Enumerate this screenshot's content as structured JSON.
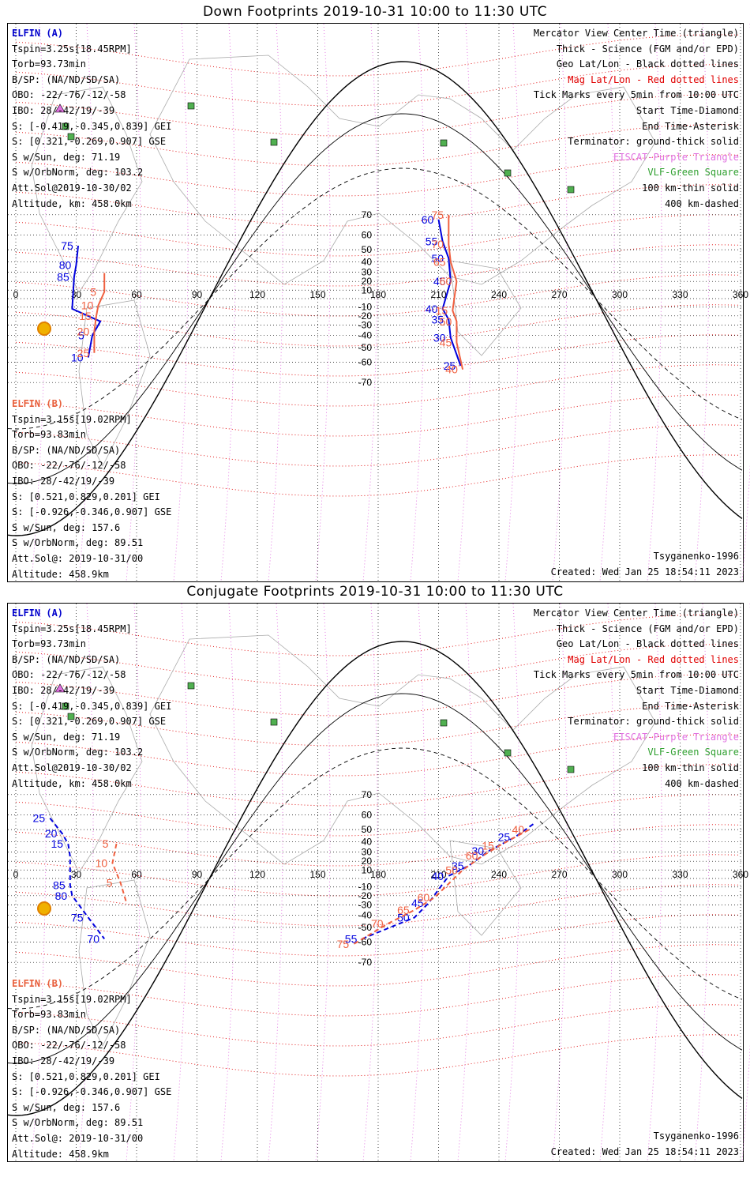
{
  "panels": [
    {
      "title": "Down Footprints 2019-10-31 10:00 to 11:30 UTC",
      "elfin_a": {
        "header": "ELFIN (A)",
        "lines": [
          "Tspin=3.25s[18.45RPM]",
          "Torb=93.73min",
          "B/SP: (NA/ND/SD/SA)",
          "OBO: -22/-76/-12/-58",
          "IBO: 28/-42/19/-39",
          "S: [-0.419,-0.345,0.839] GEI",
          "S: [0.321,-0.269,0.907] GSE",
          "S w/Sun, deg: 71.19",
          "S w/OrbNorm, deg: 103.2",
          "Att.Sol@2019-10-30/02",
          "Altitude, km: 458.0km"
        ]
      },
      "elfin_b": {
        "header": "ELFIN (B)",
        "lines": [
          "Tspin=3.15s[19.02RPM]",
          "Torb=93.83min",
          "B/SP: (NA/ND/SD/SA)",
          "OBO: -22/-76/-12/-58",
          "IBO: 28/-42/19/-39",
          "S: [0.521,0.829,0.201] GEI",
          "S: [-0.926,-0.346,0.907] GSE",
          "S w/Sun, deg: 157.6",
          "S w/OrbNorm, deg: 89.51",
          "Att.Sol@: 2019-10-31/00",
          "Altitude: 458.9km"
        ]
      },
      "legend": [
        "Mercator View Center Time (triangle)",
        "Thick - Science (FGM and/or EPD)",
        "Geo Lat/Lon - Black dotted lines",
        "Mag Lat/Lon - Red dotted lines",
        "Tick Marks every 5min from 10:00 UTC",
        "Start Time-Diamond",
        "End Time-Asterisk",
        "Terminator: ground-thick solid",
        "EISCAT-Purple Triangle",
        "VLF-Green Square",
        "100 km-thin solid",
        "400 km-dashed"
      ],
      "model": "Tsyganenko-1996",
      "created": "Created: Wed Jan 25 18:54:11 2023"
    },
    {
      "title": "Conjugate Footprints 2019-10-31 10:00 to 11:30 UTC",
      "elfin_a": {
        "header": "ELFIN (A)",
        "lines": [
          "Tspin=3.25s[18.45RPM]",
          "Torb=93.73min",
          "B/SP: (NA/ND/SD/SA)",
          "OBO: -22/-76/-12/-58",
          "IBO: 28/-42/19/-39",
          "S: [-0.419,-0.345,0.839] GEI",
          "S: [0.321,-0.269,0.907] GSE",
          "S w/Sun, deg: 71.19",
          "S w/OrbNorm, deg: 103.2",
          "Att.Sol@2019-10-30/02",
          "Altitude, km: 458.0km"
        ]
      },
      "elfin_b": {
        "header": "ELFIN (B)",
        "lines": [
          "Tspin=3.15s[19.02RPM]",
          "Torb=93.83min",
          "B/SP: (NA/ND/SD/SA)",
          "OBO: -22/-76/-12/-58",
          "IBO: 28/-42/19/-39",
          "S: [0.521,0.829,0.201] GEI",
          "S: [-0.926,-0.346,0.907] GSE",
          "S w/Sun, deg: 157.6",
          "S w/OrbNorm, deg: 89.51",
          "Att.Sol@: 2019-10-31/00",
          "Altitude: 458.9km"
        ]
      },
      "legend": [
        "Mercator View Center Time (triangle)",
        "Thick - Science (FGM and/or EPD)",
        "Geo Lat/Lon - Black dotted lines",
        "Mag Lat/Lon - Red dotted lines",
        "Tick Marks every 5min from 10:00 UTC",
        "Start Time-Diamond",
        "End Time-Asterisk",
        "Terminator: ground-thick solid",
        "EISCAT-Purple Triangle",
        "VLF-Green Square",
        "100 km-thin solid",
        "400 km-dashed"
      ],
      "model": "Tsyganenko-1996",
      "created": "Created: Wed Jan 25 18:54:11 2023"
    }
  ],
  "map": {
    "lon_ticks": [
      "0",
      "30",
      "60",
      "90",
      "120",
      "150",
      "180",
      "210",
      "240",
      "270",
      "300",
      "330",
      "360"
    ],
    "lat_ticks": [
      "70",
      "60",
      "50",
      "40",
      "30",
      "20",
      "10",
      "-10",
      "-20",
      "-30",
      "-40",
      "-50",
      "-60",
      "-70"
    ],
    "colors": {
      "elfin_a": "#0000dd",
      "elfin_b": "#f06040",
      "mag_grid": "#e00000",
      "eiscat": "#e070e0",
      "vlf": "#30a030"
    }
  },
  "down_tracks": {
    "a": [
      {
        "lon": 31,
        "lat": 53,
        "label": "75"
      },
      {
        "lon": 30,
        "lat": 37,
        "label": "80"
      },
      {
        "lon": 29,
        "lat": 25,
        "label": "85"
      },
      {
        "lon": 28,
        "lat": -12,
        "label": ""
      },
      {
        "lon": 42,
        "lat": -26,
        "label": ""
      },
      {
        "lon": 38,
        "lat": -40,
        "label": "5"
      },
      {
        "lon": 36,
        "lat": -57,
        "label": "10"
      },
      {
        "lon": 210,
        "lat": 68,
        "label": "60"
      },
      {
        "lon": 212,
        "lat": 56,
        "label": "55"
      },
      {
        "lon": 215,
        "lat": 43,
        "label": "50"
      },
      {
        "lon": 216,
        "lat": 20,
        "label": "45"
      },
      {
        "lon": 212,
        "lat": -12,
        "label": "40"
      },
      {
        "lon": 215,
        "lat": -24,
        "label": "35"
      },
      {
        "lon": 216,
        "lat": -42,
        "label": "30"
      },
      {
        "lon": 221,
        "lat": -62,
        "label": "25"
      }
    ],
    "b": [
      {
        "lon": 44,
        "lat": 29,
        "label": ""
      },
      {
        "lon": 44,
        "lat": 8,
        "label": "5"
      },
      {
        "lon": 41,
        "lat": -8,
        "label": "10"
      },
      {
        "lon": 40,
        "lat": -20,
        "label": "15"
      },
      {
        "lon": 39,
        "lat": -36,
        "label": "20"
      },
      {
        "lon": 39,
        "lat": -54,
        "label": "25"
      },
      {
        "lon": 215,
        "lat": 70,
        "label": "75"
      },
      {
        "lon": 215,
        "lat": 54,
        "label": "70"
      },
      {
        "lon": 216,
        "lat": 40,
        "label": "65"
      },
      {
        "lon": 219,
        "lat": 20,
        "label": "60"
      },
      {
        "lon": 217,
        "lat": -14,
        "label": "15"
      },
      {
        "lon": 219,
        "lat": -26,
        "label": "50"
      },
      {
        "lon": 219,
        "lat": -46,
        "label": "45"
      },
      {
        "lon": 222,
        "lat": -64,
        "label": "40"
      }
    ]
  },
  "conj_tracks": {
    "a": [
      {
        "lon": 17,
        "lat": 58,
        "label": "25"
      },
      {
        "lon": 23,
        "lat": 47,
        "label": "20"
      },
      {
        "lon": 26,
        "lat": 38,
        "label": "15"
      },
      {
        "lon": 27,
        "lat": 25,
        "label": ""
      },
      {
        "lon": 27,
        "lat": -8,
        "label": "85"
      },
      {
        "lon": 28,
        "lat": -20,
        "label": "80"
      },
      {
        "lon": 36,
        "lat": -42,
        "label": "75"
      },
      {
        "lon": 44,
        "lat": -58,
        "label": "70"
      },
      {
        "lon": 172,
        "lat": -58,
        "label": "55"
      },
      {
        "lon": 198,
        "lat": -42,
        "label": "50"
      },
      {
        "lon": 205,
        "lat": -28,
        "label": "45"
      },
      {
        "lon": 215,
        "lat": 3,
        "label": "40"
      },
      {
        "lon": 225,
        "lat": 15,
        "label": "35"
      },
      {
        "lon": 235,
        "lat": 31,
        "label": "30"
      },
      {
        "lon": 248,
        "lat": 44,
        "label": "25"
      },
      {
        "lon": 258,
        "lat": 55,
        "label": ""
      }
    ],
    "b": [
      {
        "lon": 50,
        "lat": 38,
        "label": "5"
      },
      {
        "lon": 48,
        "lat": 18,
        "label": "10"
      },
      {
        "lon": 52,
        "lat": -5,
        "label": "5"
      },
      {
        "lon": 55,
        "lat": -28,
        "label": ""
      },
      {
        "lon": 168,
        "lat": -61,
        "label": "75"
      },
      {
        "lon": 185,
        "lat": -47,
        "label": "70"
      },
      {
        "lon": 198,
        "lat": -35,
        "label": "65"
      },
      {
        "lon": 208,
        "lat": -22,
        "label": "60"
      },
      {
        "lon": 222,
        "lat": 10,
        "label": "50"
      },
      {
        "lon": 232,
        "lat": 26,
        "label": "60"
      },
      {
        "lon": 240,
        "lat": 36,
        "label": "15"
      },
      {
        "lon": 255,
        "lat": 50,
        "label": "40"
      }
    ]
  }
}
